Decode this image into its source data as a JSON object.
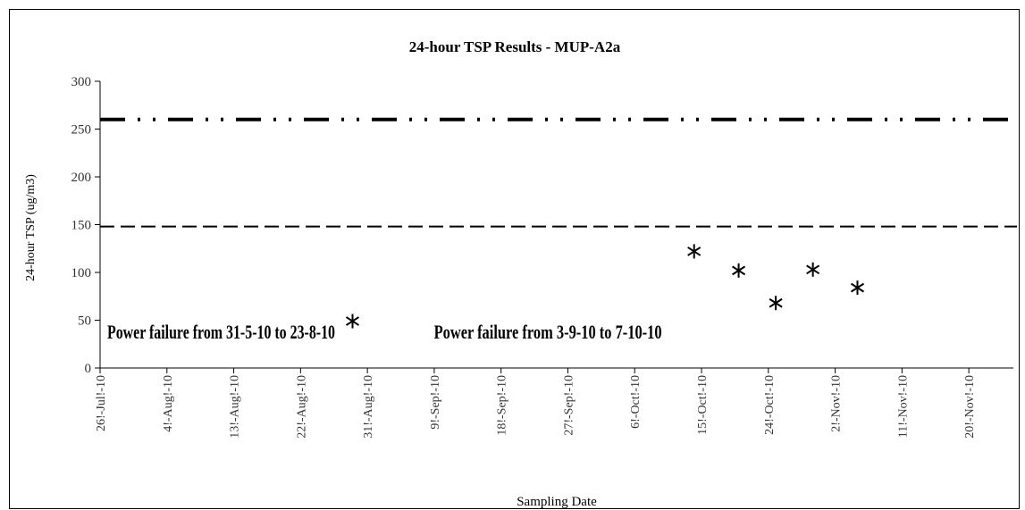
{
  "chart_data": {
    "type": "scatter",
    "title": "24-hour TSP Results - MUP-A2a",
    "xlabel": "Sampling Date",
    "ylabel": "24-hour TSP (ug/m3)",
    "ylim": [
      0,
      300
    ],
    "y_ticks": [
      0,
      50,
      100,
      150,
      200,
      250,
      300
    ],
    "x_tick_labels": [
      "26!-Jul!-10",
      "4!-Aug!-10",
      "13!-Aug!-10",
      "22!-Aug!-10",
      "31!-Aug!-10",
      "9!-Sep!-10",
      "18!-Sep!-10",
      "27!-Sep!-10",
      "6!-Oct!-10",
      "15!-Oct!-10",
      "24!-Oct!-10",
      "2!-Nov!-10",
      "11!-Nov!-10",
      "20!-Nov!-10"
    ],
    "x_tick_days": [
      0,
      9,
      18,
      27,
      36,
      45,
      54,
      63,
      72,
      81,
      90,
      99,
      108,
      117
    ],
    "x_axis_start": "2010-07-26",
    "x_axis_end_day": 123,
    "points": [
      {
        "x": "2010-08-29",
        "y": 49
      },
      {
        "x": "2010-10-14",
        "y": 122
      },
      {
        "x": "2010-10-20",
        "y": 102
      },
      {
        "x": "2010-10-25",
        "y": 68
      },
      {
        "x": "2010-10-30",
        "y": 103
      },
      {
        "x": "2010-11-05",
        "y": 84
      }
    ],
    "reference_lines": [
      {
        "y": 260,
        "style": "dash-dot-dot"
      },
      {
        "y": 148,
        "style": "dashed"
      }
    ],
    "annotations": [
      {
        "text": "Power failure from 31-5-10 to 23-8-10",
        "x": "2010-07-26",
        "y": 42
      },
      {
        "text": "Power failure from 3-9-10 to 7-10-10",
        "x": "2010-09-08",
        "y": 42
      }
    ],
    "grid": false,
    "marker": "asterisk",
    "color": "#000000"
  }
}
